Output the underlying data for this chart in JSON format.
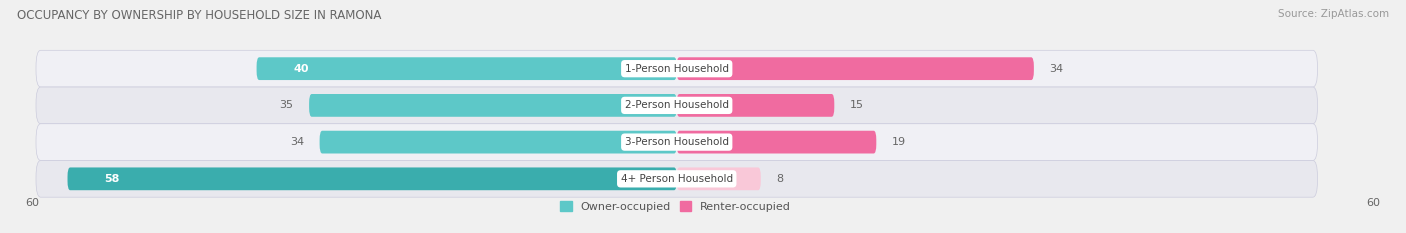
{
  "title": "OCCUPANCY BY OWNERSHIP BY HOUSEHOLD SIZE IN RAMONA",
  "source": "Source: ZipAtlas.com",
  "categories": [
    "1-Person Household",
    "2-Person Household",
    "3-Person Household",
    "4+ Person Household"
  ],
  "owner_values": [
    40,
    35,
    34,
    58
  ],
  "renter_values": [
    34,
    15,
    19,
    8
  ],
  "owner_color_light": "#5DC8C8",
  "owner_color_dark": "#3AADAD",
  "renter_color_light": "#F06BA0",
  "renter_color_pale": "#F9C8D8",
  "axis_max": 60,
  "legend_owner": "Owner-occupied",
  "legend_renter": "Renter-occupied",
  "bg_row_light": "#f7f7f7",
  "bg_row_dark": "#e8e8e8",
  "row_outline": "#d8d8d8",
  "title_color": "#666666",
  "source_color": "#999999",
  "value_color_inside": "#ffffff",
  "value_color_outside": "#666666",
  "cat_label_color": "#444444"
}
